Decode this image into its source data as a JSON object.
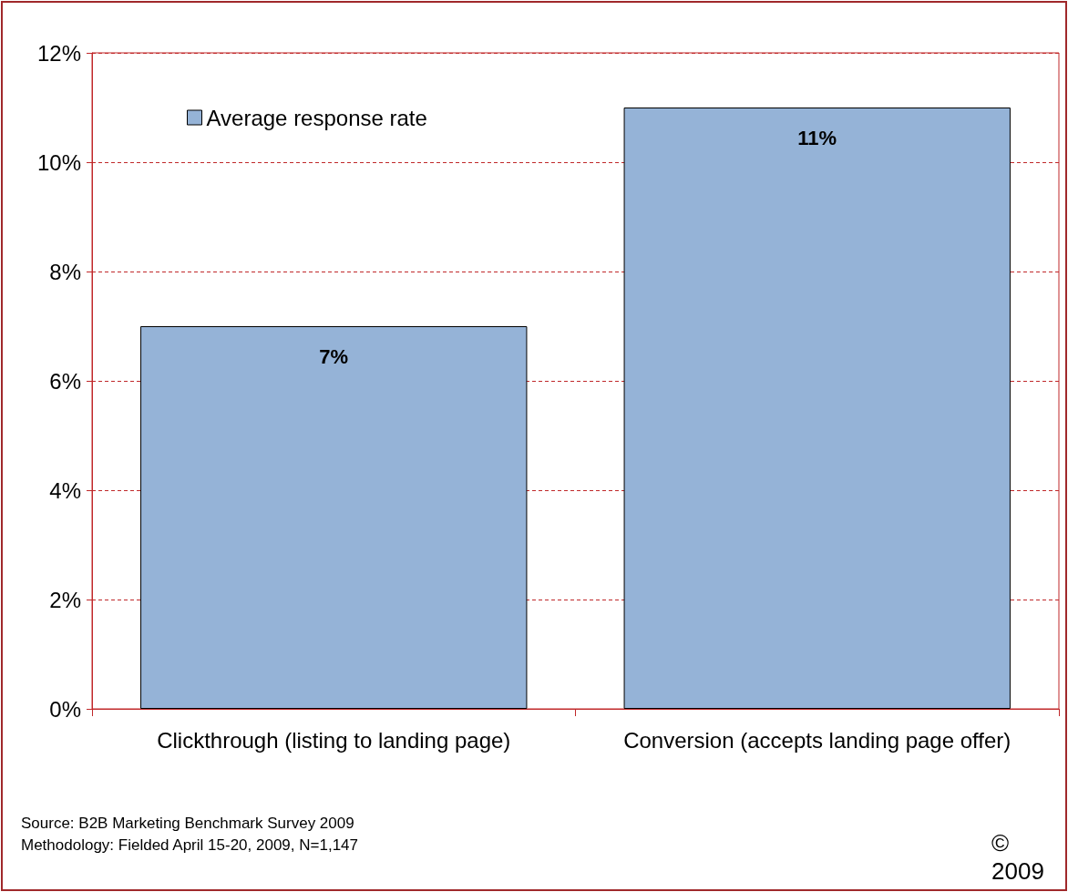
{
  "chart_data": {
    "type": "bar",
    "categories": [
      "Clickthrough (listing to landing page)",
      "Conversion (accepts landing page offer)"
    ],
    "series": [
      {
        "name": "Average response rate",
        "color": "#95b3d7",
        "values": [
          7,
          11
        ],
        "value_labels": [
          "7%",
          "11%"
        ]
      }
    ],
    "ylim": [
      0,
      12
    ],
    "yticks": [
      {
        "value": 0,
        "label": "0%"
      },
      {
        "value": 2,
        "label": "2%"
      },
      {
        "value": 4,
        "label": "4%"
      },
      {
        "value": 6,
        "label": "6%"
      },
      {
        "value": 8,
        "label": "8%"
      },
      {
        "value": 10,
        "label": "10%"
      },
      {
        "value": 12,
        "label": "12%"
      }
    ],
    "grid": "y",
    "legend": "top left",
    "annotations": [
      "Source: B2B Marketing Benchmark Survey 2009",
      "Methodology: Fielded  April 15-20, 2009, N=1,147",
      "© 2009"
    ]
  }
}
